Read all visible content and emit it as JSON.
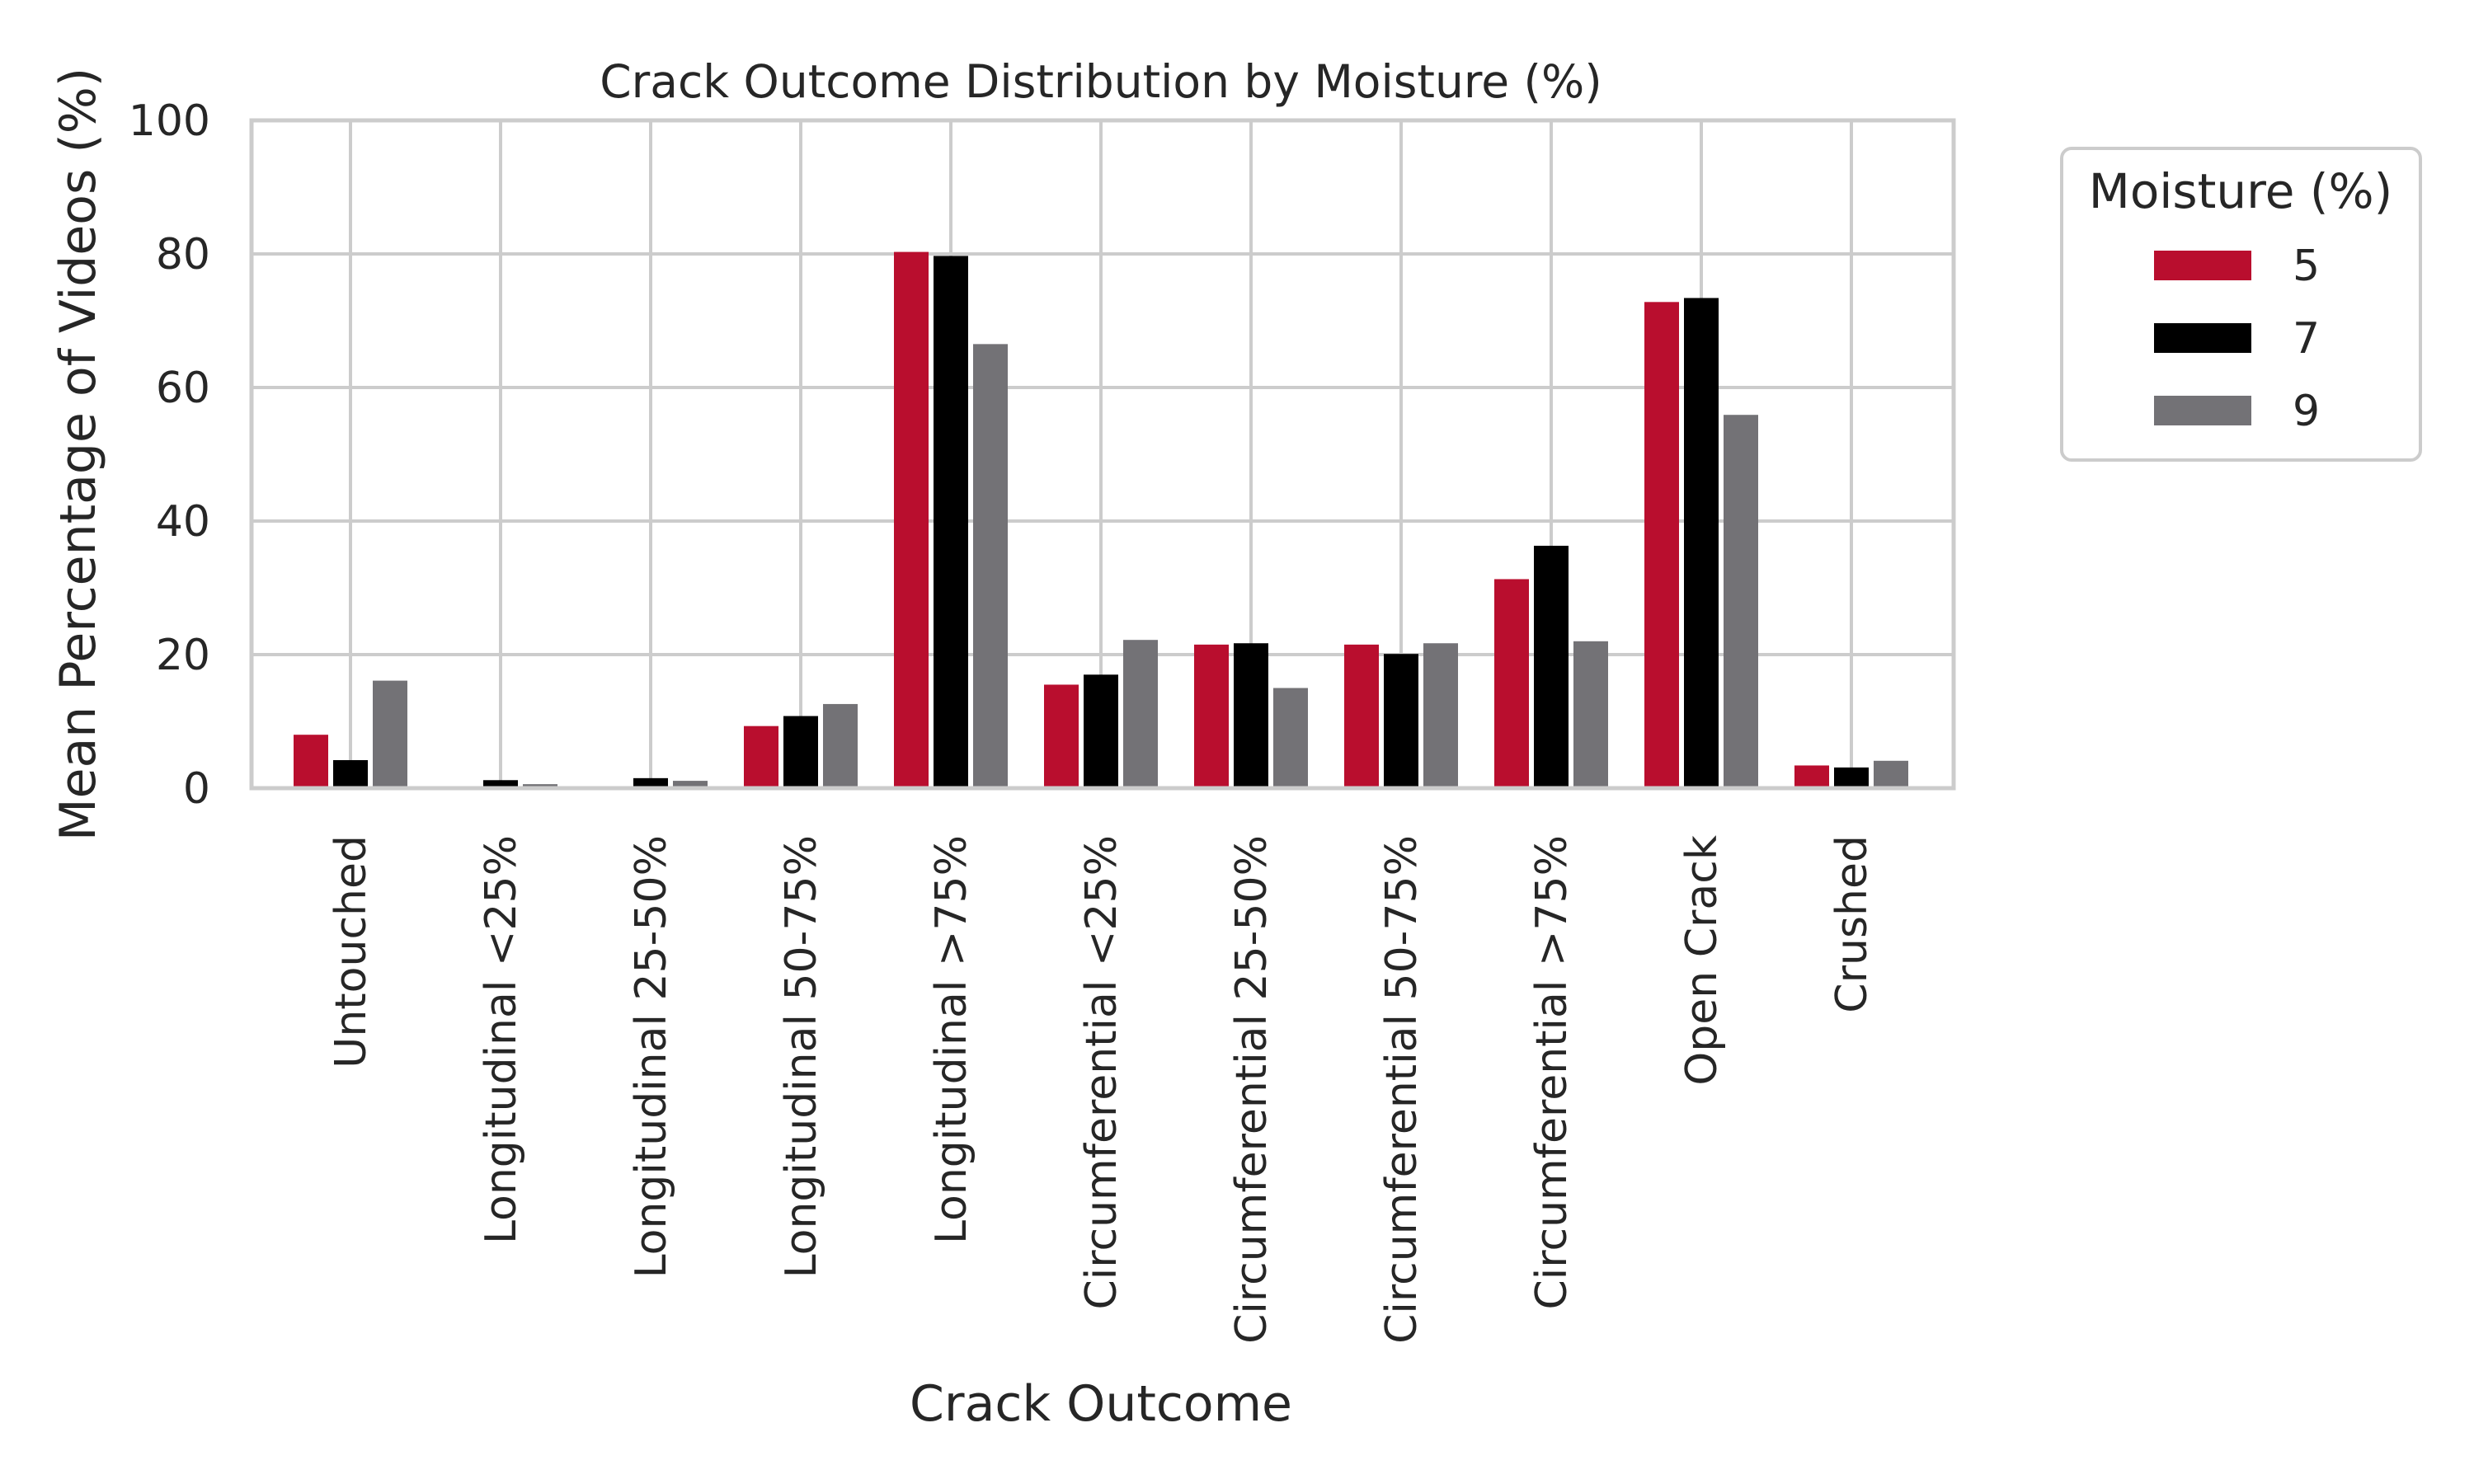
{
  "chart_data": {
    "type": "bar",
    "title": "Crack Outcome Distribution by Moisture (%)",
    "xlabel": "Crack Outcome",
    "ylabel": "Mean Percentage of Videos (%)",
    "ylim": [
      0,
      100
    ],
    "yticks": [
      0,
      20,
      40,
      60,
      80,
      100
    ],
    "grid": true,
    "legend_title": "Moisture (%)",
    "legend_position": "outside-right",
    "categories": [
      "Untouched",
      "Longitudinal <25%",
      "Longitudinal 25-50%",
      "Longitudinal 50-75%",
      "Longitudinal >75%",
      "Circumferential <25%",
      "Circumferential 25-50%",
      "Circumferential 50-75%",
      "Circumferential >75%",
      "Open Crack",
      "Crushed"
    ],
    "series": [
      {
        "name": "5",
        "color": "#b90e2e",
        "values": [
          8.0,
          0.0,
          0.0,
          9.3,
          80.3,
          15.5,
          21.5,
          21.5,
          31.3,
          72.8,
          3.4
        ]
      },
      {
        "name": "7",
        "color": "#000000",
        "values": [
          4.2,
          1.2,
          1.5,
          10.8,
          79.7,
          17.0,
          21.7,
          20.1,
          36.3,
          73.4,
          3.1
        ]
      },
      {
        "name": "9",
        "color": "#737276",
        "values": [
          16.1,
          0.6,
          1.1,
          12.6,
          66.5,
          22.2,
          15.0,
          21.7,
          22.0,
          55.9,
          4.1
        ]
      }
    ]
  }
}
